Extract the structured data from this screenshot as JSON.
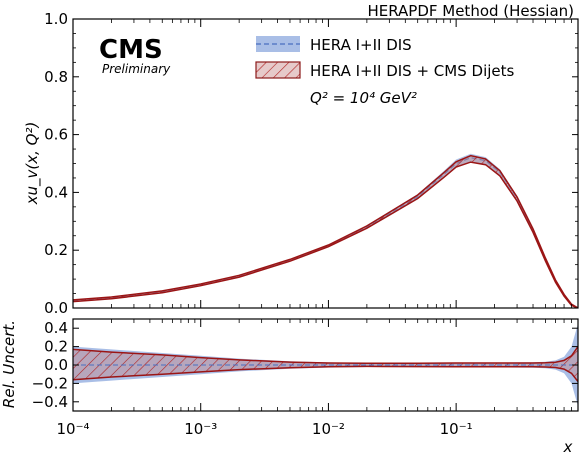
{
  "header": "HERAPDF Method (Hessian)",
  "experiment": "CMS",
  "status": "Preliminary",
  "annotation": {
    "q2_label": "Q² = 10⁴ GeV²"
  },
  "colors": {
    "band_dis": "#6f93d6",
    "band_dis_line": "#4a6fc0",
    "band_jets_line": "#9b1515",
    "hatch": "#c04040"
  },
  "chart_data": [
    {
      "type": "area",
      "panel": "top",
      "ylabel": "xu_v(x, Q²)",
      "xscale": "log",
      "xlim": [
        0.0001,
        0.9
      ],
      "ylim": [
        0.0,
        1.0
      ],
      "yticks": [
        "0.0",
        "0.2",
        "0.4",
        "0.6",
        "0.8",
        "1.0"
      ],
      "x": [
        0.0001,
        0.0002,
        0.0005,
        0.001,
        0.002,
        0.005,
        0.01,
        0.02,
        0.05,
        0.08,
        0.1,
        0.13,
        0.17,
        0.22,
        0.3,
        0.4,
        0.5,
        0.6,
        0.7,
        0.8,
        0.9
      ],
      "series": [
        {
          "name": "HERA I+II DIS",
          "central": [
            0.025,
            0.035,
            0.056,
            0.08,
            0.11,
            0.165,
            0.215,
            0.28,
            0.385,
            0.462,
            0.5,
            0.52,
            0.51,
            0.47,
            0.38,
            0.27,
            0.17,
            0.095,
            0.045,
            0.012,
            0.0
          ],
          "lower": [
            0.021,
            0.031,
            0.052,
            0.076,
            0.106,
            0.161,
            0.211,
            0.274,
            0.376,
            0.45,
            0.486,
            0.506,
            0.498,
            0.46,
            0.372,
            0.263,
            0.164,
            0.09,
            0.041,
            0.009,
            0.0
          ],
          "upper": [
            0.029,
            0.039,
            0.06,
            0.084,
            0.114,
            0.169,
            0.219,
            0.286,
            0.394,
            0.474,
            0.514,
            0.534,
            0.522,
            0.48,
            0.388,
            0.277,
            0.176,
            0.1,
            0.049,
            0.015,
            0.0
          ]
        },
        {
          "name": "HERA I+II DIS + CMS Dijets",
          "central": [
            0.025,
            0.035,
            0.056,
            0.08,
            0.11,
            0.165,
            0.215,
            0.28,
            0.385,
            0.46,
            0.497,
            0.516,
            0.506,
            0.466,
            0.377,
            0.268,
            0.168,
            0.093,
            0.044,
            0.011,
            0.0
          ],
          "lower": [
            0.022,
            0.032,
            0.053,
            0.077,
            0.107,
            0.162,
            0.212,
            0.276,
            0.379,
            0.452,
            0.488,
            0.505,
            0.496,
            0.457,
            0.37,
            0.262,
            0.163,
            0.089,
            0.041,
            0.009,
            0.0
          ],
          "upper": [
            0.028,
            0.038,
            0.059,
            0.083,
            0.113,
            0.168,
            0.218,
            0.284,
            0.391,
            0.468,
            0.506,
            0.527,
            0.516,
            0.475,
            0.384,
            0.274,
            0.173,
            0.097,
            0.047,
            0.013,
            0.0
          ]
        }
      ]
    },
    {
      "type": "area",
      "panel": "bottom",
      "ylabel": "Rel. Uncert.",
      "xlabel": "x",
      "xscale": "log",
      "xlim": [
        0.0001,
        0.9
      ],
      "ylim": [
        -0.5,
        0.5
      ],
      "yticks": [
        "−0.4",
        "−0.2",
        "0.0",
        "0.2",
        "0.4"
      ],
      "xticks": [
        "10⁻⁴",
        "10⁻³",
        "10⁻²",
        "10⁻¹"
      ],
      "x": [
        0.0001,
        0.0002,
        0.0005,
        0.001,
        0.002,
        0.005,
        0.01,
        0.02,
        0.05,
        0.1,
        0.2,
        0.3,
        0.4,
        0.5,
        0.6,
        0.7,
        0.8,
        0.9
      ],
      "series": [
        {
          "name": "HERA I+II DIS",
          "upper": [
            0.2,
            0.17,
            0.13,
            0.1,
            0.07,
            0.04,
            0.028,
            0.022,
            0.022,
            0.025,
            0.025,
            0.028,
            0.03,
            0.035,
            0.05,
            0.09,
            0.2,
            0.45
          ],
          "lower": [
            -0.2,
            -0.17,
            -0.13,
            -0.1,
            -0.07,
            -0.04,
            -0.028,
            -0.022,
            -0.022,
            -0.025,
            -0.025,
            -0.028,
            -0.03,
            -0.035,
            -0.05,
            -0.09,
            -0.2,
            -0.45
          ]
        },
        {
          "name": "HERA I+II DIS + CMS Dijets",
          "upper": [
            0.17,
            0.14,
            0.11,
            0.08,
            0.055,
            0.032,
            0.022,
            0.018,
            0.02,
            0.022,
            0.022,
            0.022,
            0.022,
            0.025,
            0.03,
            0.05,
            0.1,
            0.2
          ],
          "lower": [
            -0.16,
            -0.13,
            -0.1,
            -0.075,
            -0.05,
            -0.03,
            -0.02,
            -0.015,
            -0.017,
            -0.02,
            -0.02,
            -0.02,
            -0.02,
            -0.022,
            -0.027,
            -0.045,
            -0.09,
            -0.18
          ]
        }
      ]
    }
  ]
}
